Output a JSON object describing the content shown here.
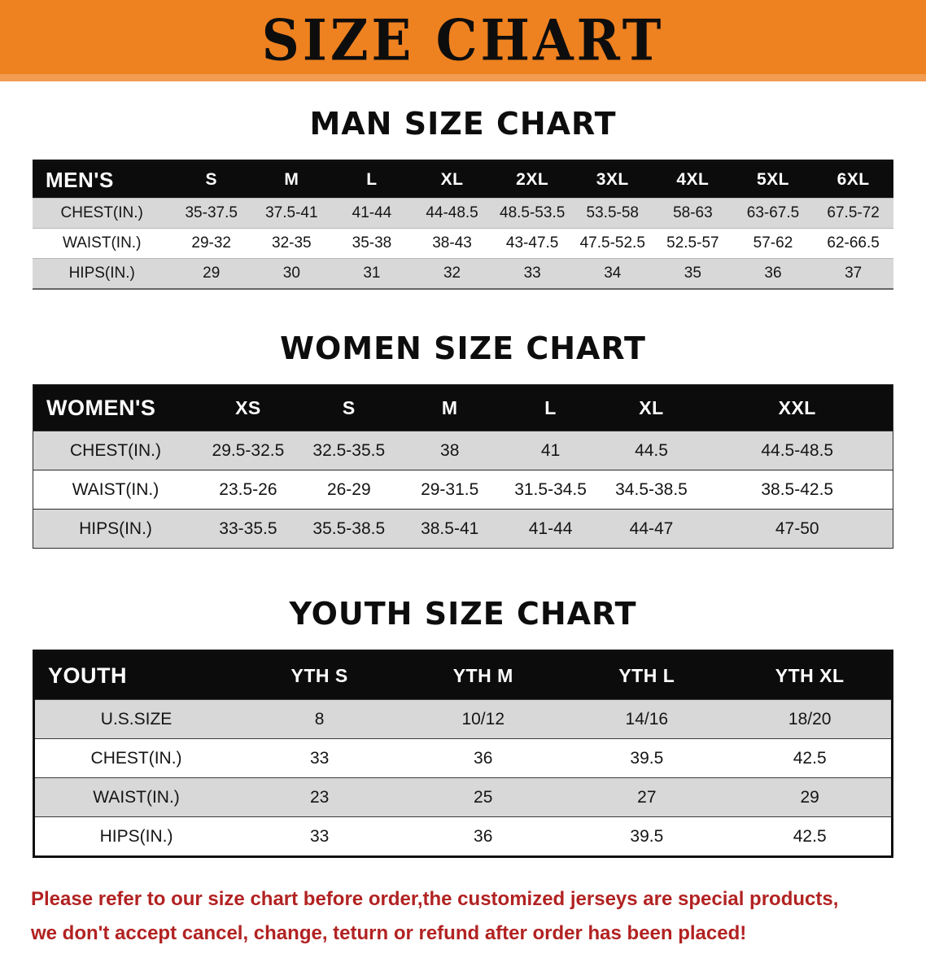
{
  "banner": {
    "title": "SIZE CHART",
    "bg_color": "#ee8120"
  },
  "sections": [
    {
      "heading": "MAN SIZE CHART",
      "table": {
        "header": [
          "MEN'S",
          "S",
          "M",
          "L",
          "XL",
          "2XL",
          "3XL",
          "4XL",
          "5XL",
          "6XL"
        ],
        "rows": [
          [
            "CHEST(IN.)",
            "35-37.5",
            "37.5-41",
            "41-44",
            "44-48.5",
            "48.5-53.5",
            "53.5-58",
            "58-63",
            "63-67.5",
            "67.5-72"
          ],
          [
            "WAIST(IN.)",
            "29-32",
            "32-35",
            "35-38",
            "38-43",
            "43-47.5",
            "47.5-52.5",
            "52.5-57",
            "57-62",
            "62-66.5"
          ],
          [
            "HIPS(IN.)",
            "29",
            "30",
            "31",
            "32",
            "33",
            "34",
            "35",
            "36",
            "37"
          ]
        ]
      }
    },
    {
      "heading": "WOMEN SIZE CHART",
      "table": {
        "header": [
          "WOMEN'S",
          "XS",
          "S",
          "M",
          "L",
          "XL",
          "XXL"
        ],
        "rows": [
          [
            "CHEST(IN.)",
            "29.5-32.5",
            "32.5-35.5",
            "38",
            "41",
            "44.5",
            "44.5-48.5"
          ],
          [
            "WAIST(IN.)",
            "23.5-26",
            "26-29",
            "29-31.5",
            "31.5-34.5",
            "34.5-38.5",
            "38.5-42.5"
          ],
          [
            "HIPS(IN.)",
            "33-35.5",
            "35.5-38.5",
            "38.5-41",
            "41-44",
            "44-47",
            "47-50"
          ]
        ]
      }
    },
    {
      "heading": "YOUTH SIZE CHART",
      "table": {
        "header": [
          "YOUTH",
          "YTH S",
          "YTH M",
          "YTH L",
          "YTH XL"
        ],
        "rows": [
          [
            "U.S.SIZE",
            "8",
            "10/12",
            "14/16",
            "18/20"
          ],
          [
            "CHEST(IN.)",
            "33",
            "36",
            "39.5",
            "42.5"
          ],
          [
            "WAIST(IN.)",
            "23",
            "25",
            "27",
            "29"
          ],
          [
            "HIPS(IN.)",
            "33",
            "36",
            "39.5",
            "42.5"
          ]
        ]
      }
    }
  ],
  "footer": {
    "line1": "Please refer to our size chart before order,the customized jerseys are special products,",
    "line2": "we don't accept cancel, change, teturn or refund after order has been placed!"
  },
  "colors": {
    "banner": "#ee8120",
    "row_alt": "#d8d8d8",
    "header_bg": "#0c0c0c",
    "footer_text": "#b22222"
  }
}
